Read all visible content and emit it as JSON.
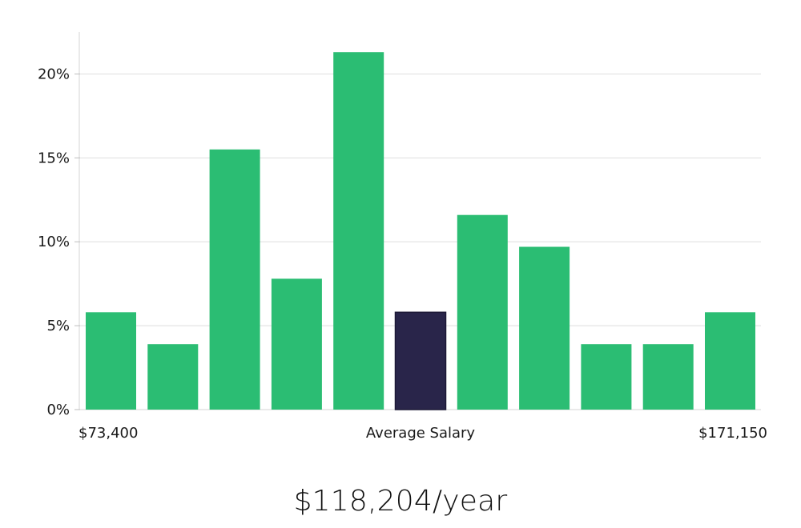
{
  "chart_data": {
    "type": "bar",
    "categories": [
      "$73,400",
      "",
      "",
      "",
      "",
      "Average Salary",
      "",
      "",
      "",
      "",
      "$171,150"
    ],
    "values": [
      5.8,
      3.9,
      15.5,
      7.8,
      21.3,
      5.8,
      11.6,
      9.7,
      3.9,
      3.9,
      5.8
    ],
    "highlight_index": 5,
    "xlabel_left": "$73,400",
    "xlabel_center": "Average Salary",
    "xlabel_right": "$171,150",
    "ylim": [
      0,
      22.5
    ],
    "yticks": [
      0,
      5,
      10,
      15,
      20
    ],
    "ytick_labels": [
      "0%",
      "5%",
      "10%",
      "15%",
      "20%"
    ],
    "grid": true,
    "colors": {
      "bar": "#2bbd73",
      "highlight": "#29254a",
      "grid": "#dedede",
      "axis": "#cccccc"
    }
  },
  "summary": {
    "average_salary": "$118,204/year"
  }
}
